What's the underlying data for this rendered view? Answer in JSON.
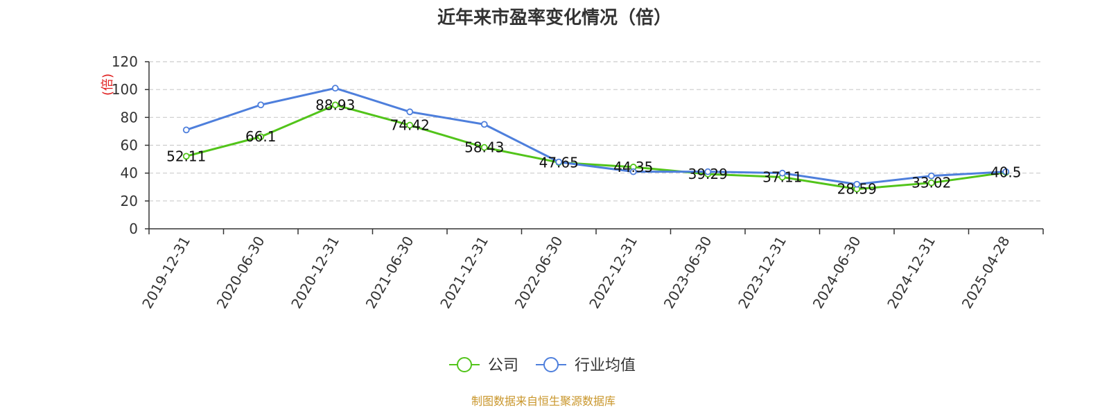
{
  "colors": {
    "company": "#52c41a",
    "industry": "#4e7fdc",
    "ylabel": "#e02020",
    "source": "#c9962b",
    "grid": "#cccccc",
    "axis": "#333333"
  },
  "chart_data": {
    "type": "line",
    "title": "近年来市盈率变化情况（倍）",
    "ylabel": "(倍)",
    "categories": [
      "2019-12-31",
      "2020-06-30",
      "2020-12-31",
      "2021-06-30",
      "2021-12-31",
      "2022-06-30",
      "2022-12-31",
      "2023-06-30",
      "2023-12-31",
      "2024-06-30",
      "2024-12-31",
      "2025-04-28"
    ],
    "ylim": [
      0,
      120
    ],
    "yticks": [
      0,
      20,
      40,
      60,
      80,
      100,
      120
    ],
    "grid": true,
    "legend_position": "bottom",
    "series": [
      {
        "name": "公司",
        "color": "#52c41a",
        "values": [
          52.11,
          66.1,
          88.93,
          74.42,
          58.43,
          47.65,
          44.35,
          39.29,
          37.11,
          28.59,
          33.02,
          40.5
        ],
        "labels": [
          "52.11",
          "66.1",
          "88.93",
          "74.42",
          "58.43",
          "47.65",
          "44.35",
          "39.29",
          "37.11",
          "28.59",
          "33.02",
          "40.5"
        ]
      },
      {
        "name": "行业均值",
        "color": "#4e7fdc",
        "values": [
          71,
          89,
          101,
          84,
          75,
          48,
          41,
          41,
          40,
          32,
          38,
          41
        ]
      }
    ]
  },
  "source": "制图数据来自恒生聚源数据库"
}
